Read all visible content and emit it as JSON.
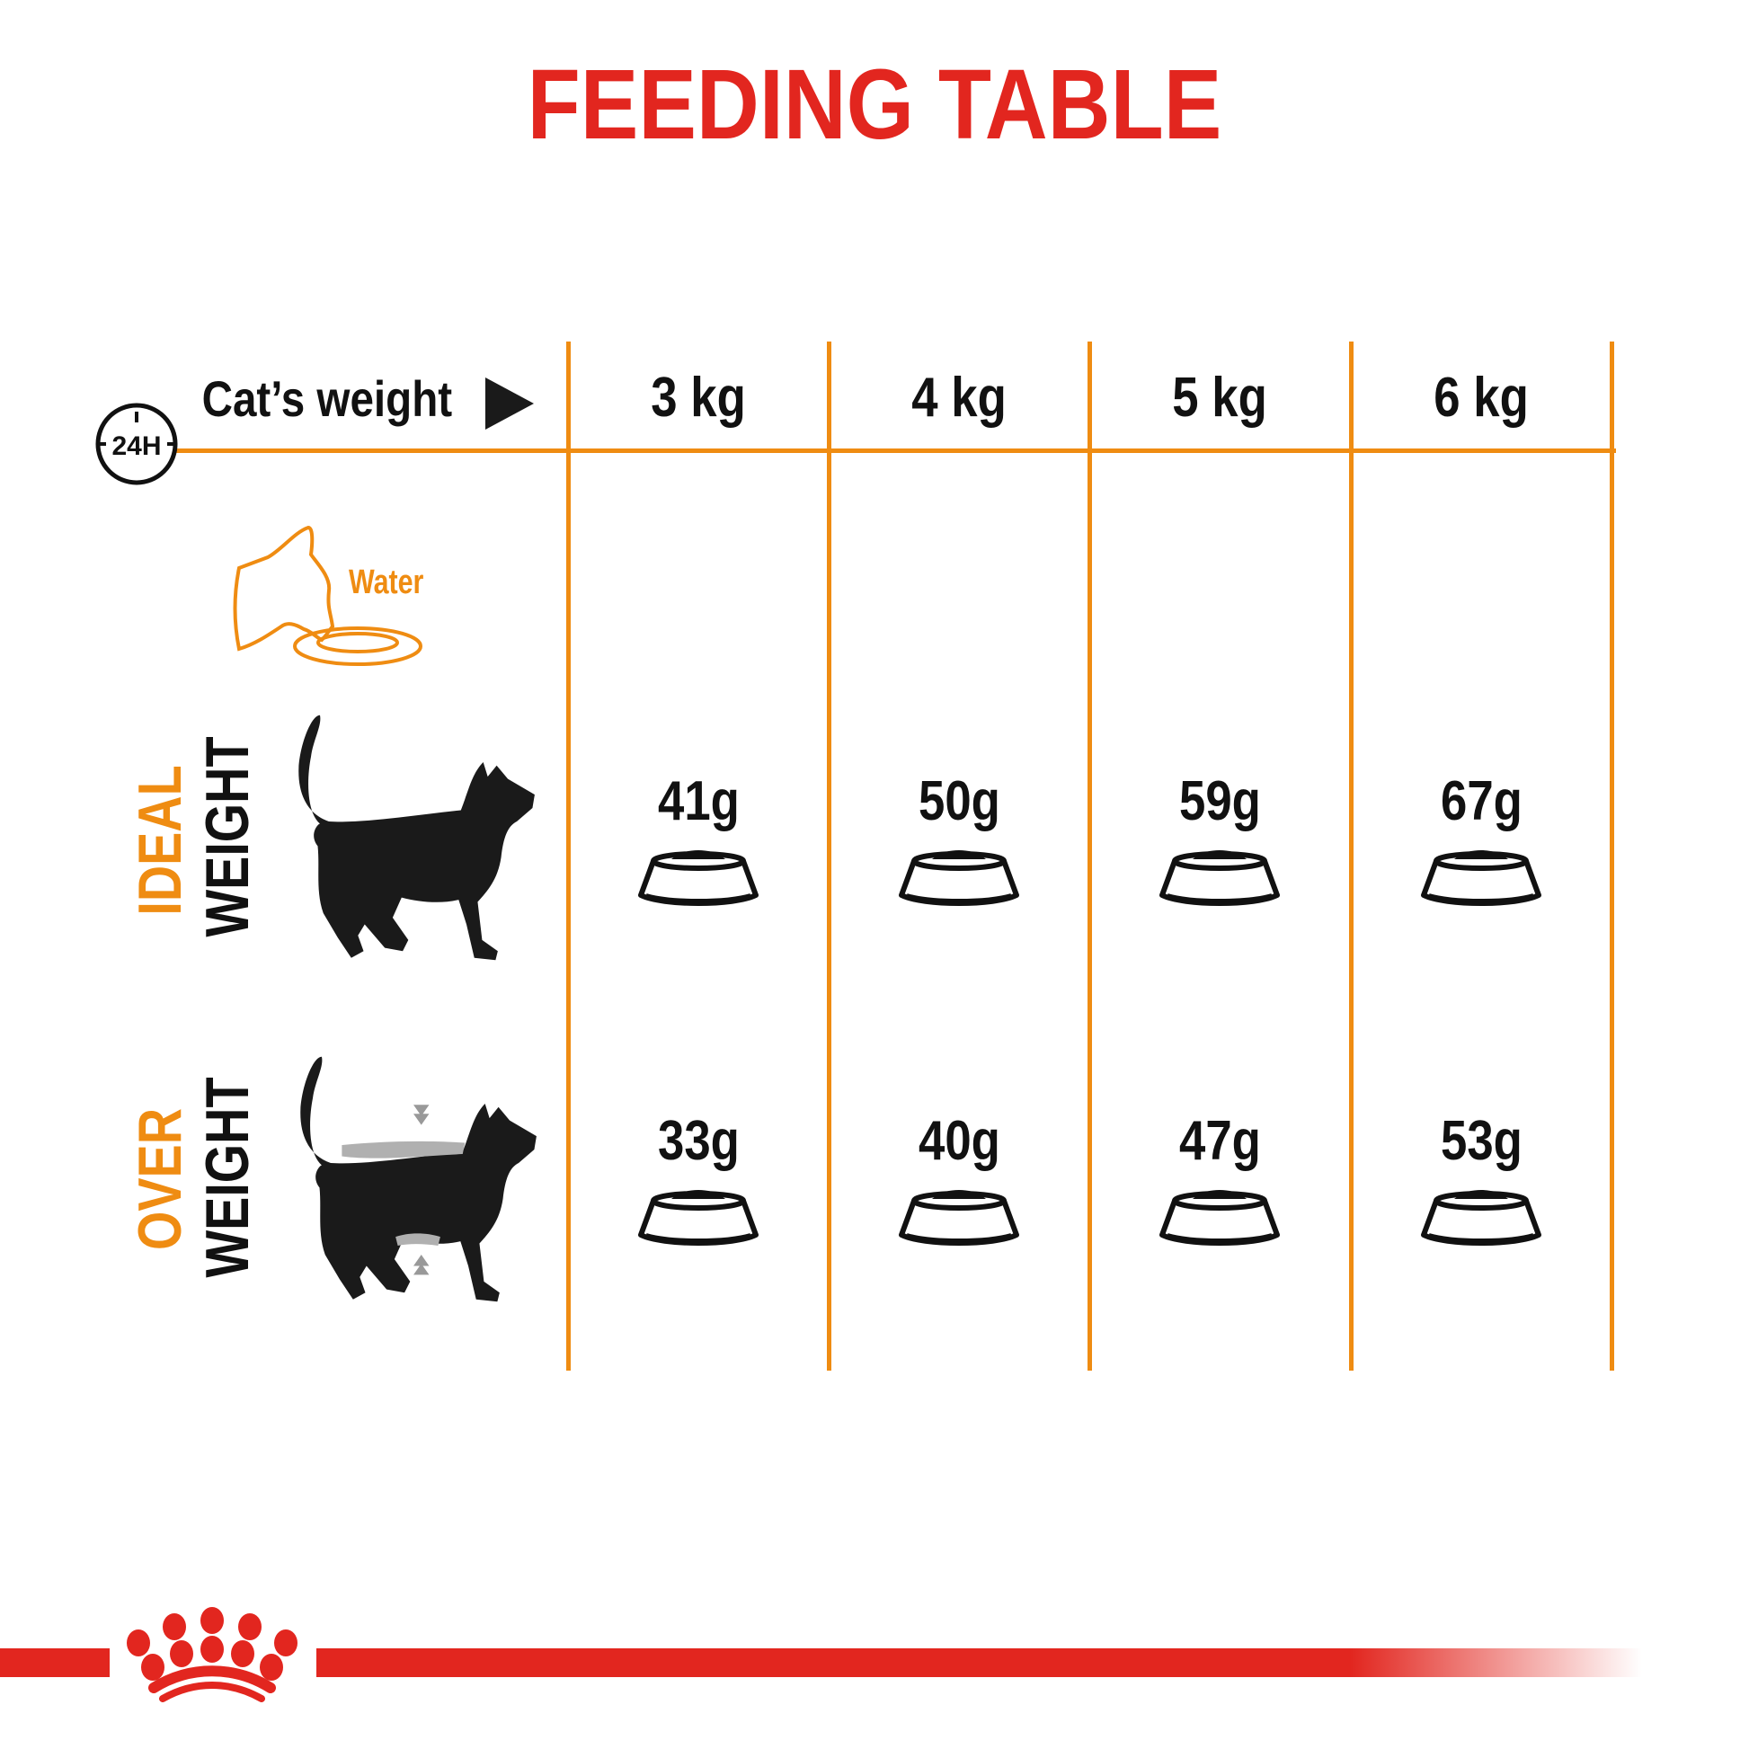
{
  "title": "FEEDING TABLE",
  "header": {
    "label": "Cat’s weight",
    "period_icon_text": "24H",
    "weights": [
      "3 kg",
      "4 kg",
      "5 kg",
      "6 kg"
    ]
  },
  "water": {
    "label": "Water"
  },
  "rows": [
    {
      "label_top": "IDEAL",
      "label_bottom": "WEIGHT",
      "values": [
        "41g",
        "50g",
        "59g",
        "67g"
      ]
    },
    {
      "label_top": "OVER",
      "label_bottom": "WEIGHT",
      "values": [
        "33g",
        "40g",
        "47g",
        "53g"
      ]
    }
  ],
  "colors": {
    "title": "#e2261f",
    "grid": "#ef8c12",
    "accent": "#ef8c12",
    "text": "#111111",
    "brand": "#e2261f"
  },
  "icons": [
    "24h-clock-icon",
    "play-triangle-icon",
    "cat-drinking-water-icon",
    "cat-ideal-weight-icon",
    "cat-overweight-icon",
    "food-bowl-icon",
    "royal-canin-crown-logo"
  ]
}
